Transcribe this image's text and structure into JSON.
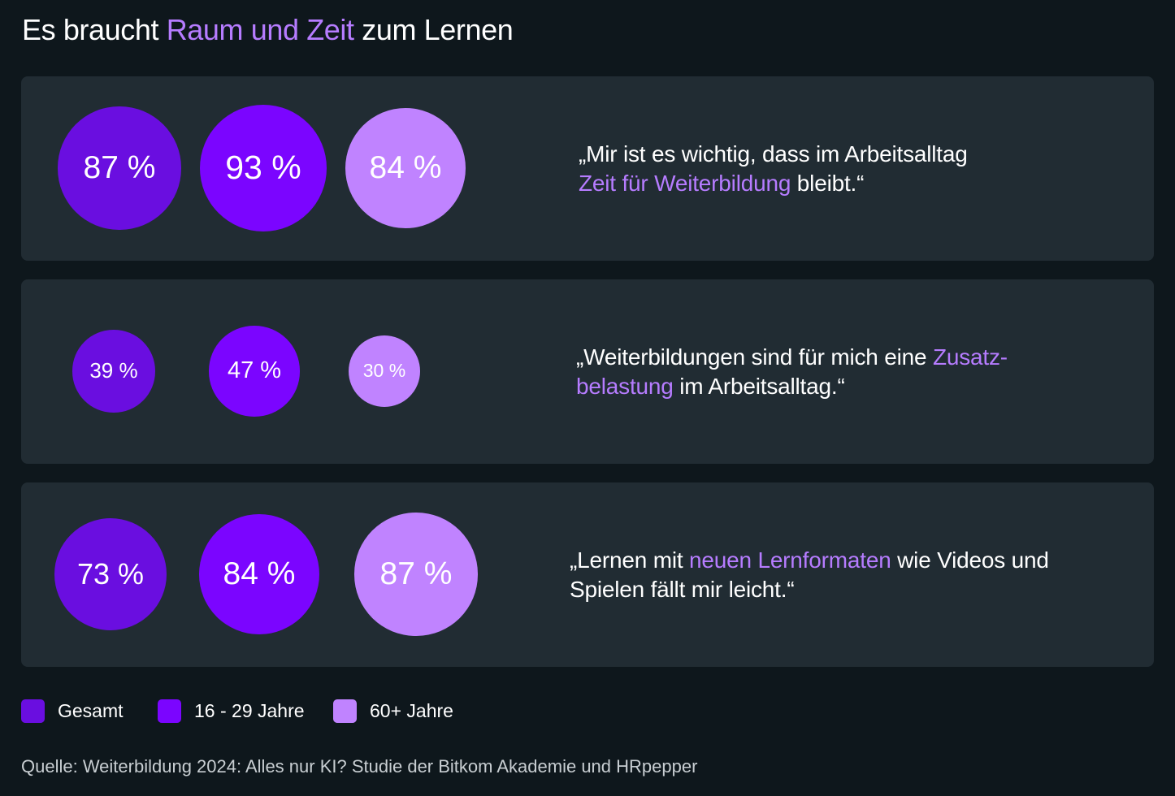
{
  "title": {
    "part1": "Es braucht ",
    "accent": "Raum und Zeit",
    "part2": " zum Lernen"
  },
  "colors": {
    "gesamt": "#6a0ee0",
    "age_16_29": "#7b05ff",
    "age_60_plus": "#c083ff",
    "accent_text": "#b67cff",
    "panel": "#212c33",
    "background": "#0e171c"
  },
  "legend": [
    {
      "label": "Gesamt",
      "color": "#6a0ee0"
    },
    {
      "label": "16 - 29 Jahre",
      "color": "#7b05ff"
    },
    {
      "label": "60+ Jahre",
      "color": "#c083ff"
    }
  ],
  "chart_data": {
    "type": "bubble",
    "series": [
      {
        "name": "Gesamt",
        "values": [
          87,
          39,
          73
        ]
      },
      {
        "name": "16 - 29 Jahre",
        "values": [
          93,
          47,
          84
        ]
      },
      {
        "name": "60+ Jahre",
        "values": [
          84,
          30,
          87
        ]
      }
    ],
    "categories": [
      "„Mir ist es wichtig, dass im Arbeitsalltag Zeit für Weiterbildung bleibt.“",
      "„Weiterbildungen sind für mich eine Zusatzbelastung im Arbeitsalltag.“",
      "„Lernen mit neuen Lernformaten wie Videos und Spielen fällt mir leicht.“"
    ],
    "unit": "%",
    "rows": [
      {
        "labels": [
          "87 %",
          "93 %",
          "84 %"
        ],
        "quote": {
          "pre": "„Mir ist es wichtig, dass im Arbeitsalltag",
          "accent": "Zeit für Weiterbildung",
          "post": " bleibt.“"
        }
      },
      {
        "labels": [
          "39 %",
          "47 %",
          "30 %"
        ],
        "quote": {
          "pre": "„Weiterbildungen sind für  mich eine ",
          "accent": "Zusatz-belastung",
          "post": " im Arbeitsalltag.“"
        }
      },
      {
        "labels": [
          "73 %",
          "84 %",
          "87 %"
        ],
        "quote": {
          "pre": "„Lernen mit ",
          "accent": "neuen Lernformaten",
          "post": " wie Videos und Spielen fällt mir leicht.“"
        }
      }
    ]
  },
  "source": "Quelle: Weiterbildung 2024: Alles nur KI? Studie der Bitkom Akademie und HRpepper"
}
